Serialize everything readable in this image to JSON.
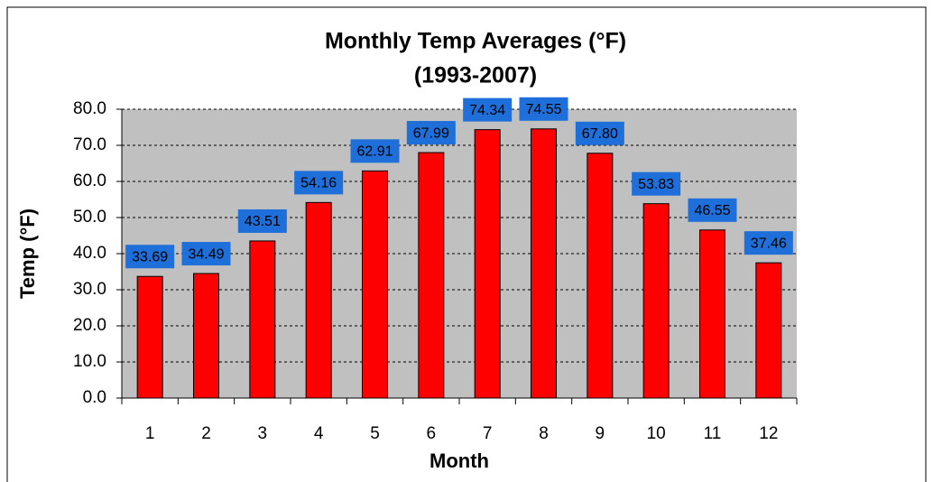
{
  "chart_data": {
    "type": "bar",
    "title": "Monthly Temp Averages (°F)",
    "subtitle": "(1993-2007)",
    "x_label": "Month",
    "y_label": "Temp (°F)",
    "categories": [
      "1",
      "2",
      "3",
      "4",
      "5",
      "6",
      "7",
      "8",
      "9",
      "10",
      "11",
      "12"
    ],
    "values": [
      33.69,
      34.49,
      43.51,
      54.16,
      62.91,
      67.99,
      74.34,
      74.55,
      67.8,
      53.83,
      46.55,
      37.46
    ],
    "value_labels": [
      "33.69",
      "34.49",
      "43.51",
      "54.16",
      "62.91",
      "67.99",
      "74.34",
      "74.55",
      "67.80",
      "53.83",
      "46.55",
      "37.46"
    ],
    "color": "#ff0000",
    "ylim": [
      0,
      80
    ],
    "yticks": [
      {
        "value": 0,
        "label": "0.0"
      },
      {
        "value": 10,
        "label": "10.0"
      },
      {
        "value": 20,
        "label": "20.0"
      },
      {
        "value": 30,
        "label": "30.0"
      },
      {
        "value": 40,
        "label": "40.0"
      },
      {
        "value": 50,
        "label": "50.0"
      },
      {
        "value": 60,
        "label": "60.0"
      },
      {
        "value": 70,
        "label": "70.0"
      },
      {
        "value": 80,
        "label": "80.0"
      }
    ],
    "grid": true
  }
}
